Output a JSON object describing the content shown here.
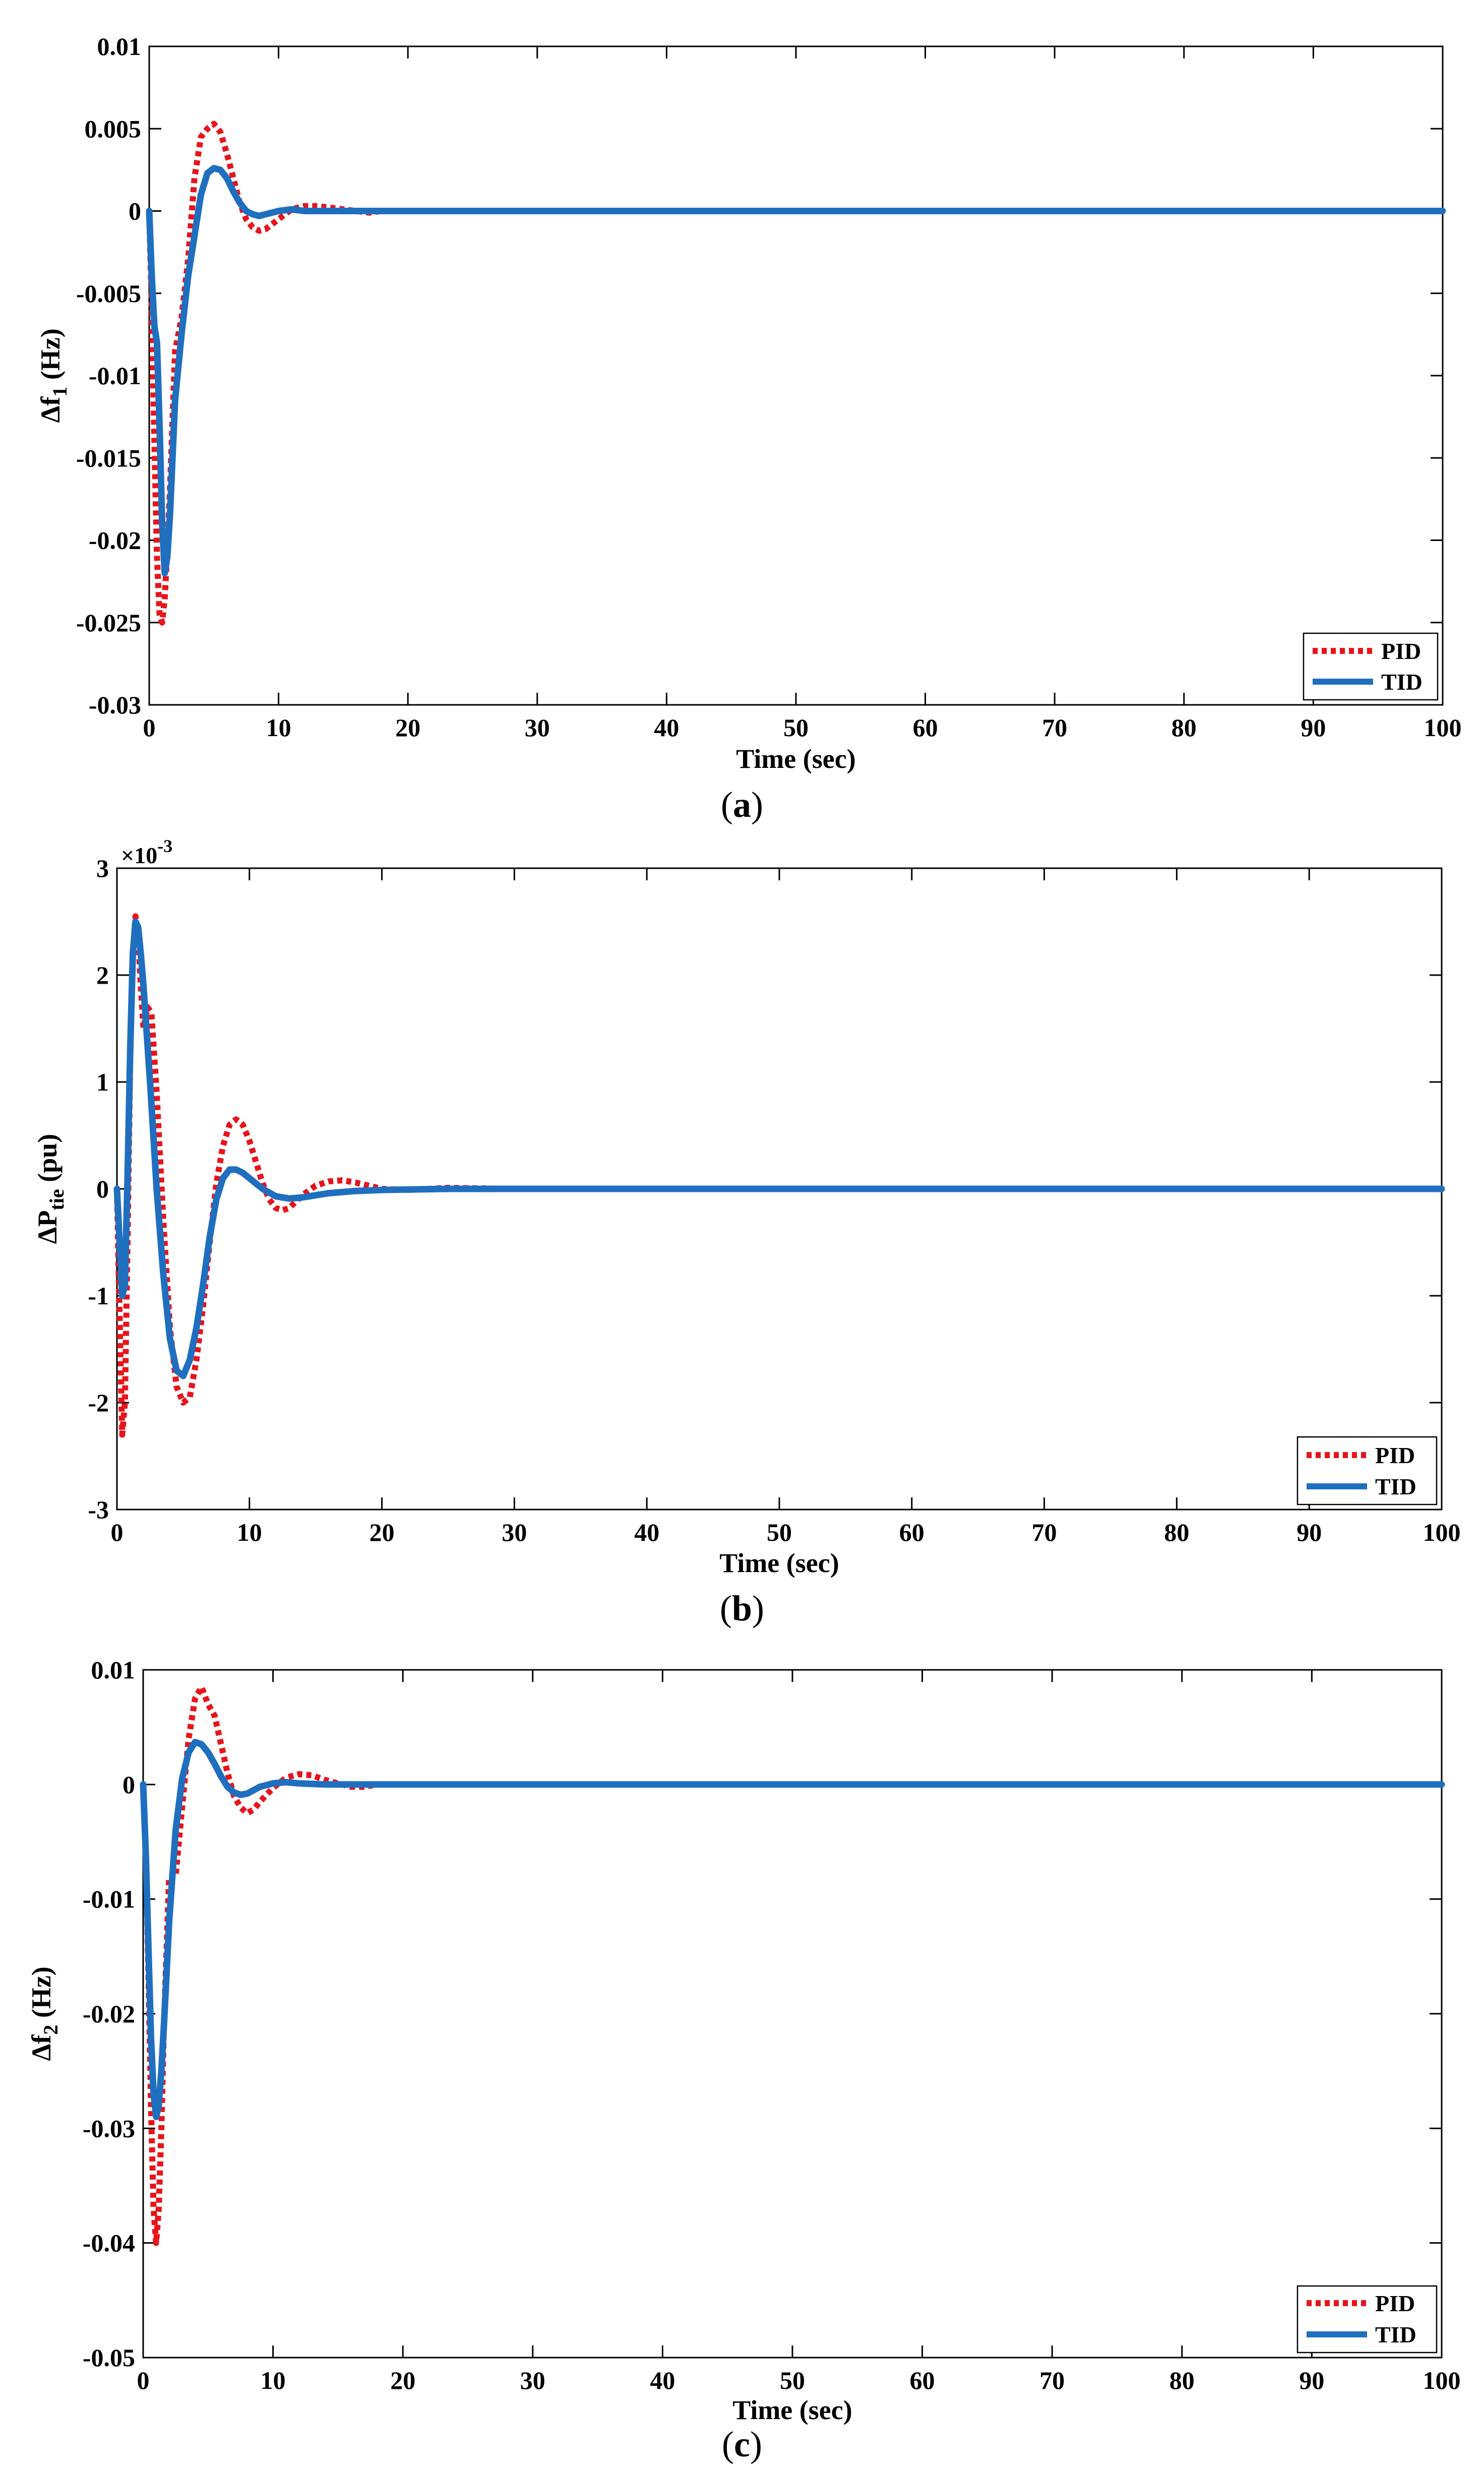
{
  "colors": {
    "pid": "#e8141b",
    "tid": "#1f6fbf",
    "axis": "#000000",
    "background": "#ffffff"
  },
  "chart_data": [
    {
      "id": "a",
      "type": "line",
      "caption_letter": "a",
      "xlabel": "Time (sec)",
      "ylabel": {
        "prefix": "Δf",
        "sub": "1",
        "suffix": " (Hz)"
      },
      "xlim": [
        0,
        100
      ],
      "ylim": [
        -0.03,
        0.01
      ],
      "xticks": [
        0,
        10,
        20,
        30,
        40,
        50,
        60,
        70,
        80,
        90,
        100
      ],
      "xtick_labels": [
        "0",
        "10",
        "20",
        "30",
        "40",
        "50",
        "60",
        "70",
        "80",
        "90",
        "100"
      ],
      "yticks": [
        -0.03,
        -0.025,
        -0.02,
        -0.015,
        -0.01,
        -0.005,
        0,
        0.005,
        0.01
      ],
      "ytick_labels": [
        "-0.03",
        "-0.025",
        "-0.02",
        "-0.015",
        "-0.01",
        "-0.005",
        "0",
        "0.005",
        "0.01"
      ],
      "exponent_label": "",
      "legend_position": "bottom-right",
      "series": [
        {
          "name": "PID",
          "style": "dotted",
          "x": [
            0,
            0.2,
            0.4,
            0.6,
            0.8,
            1.0,
            1.2,
            1.4,
            1.6,
            2.0,
            2.5,
            3.0,
            3.5,
            4.0,
            4.5,
            5.0,
            5.5,
            6.0,
            6.5,
            7.0,
            7.5,
            8.0,
            8.5,
            9.0,
            10.0,
            11.0,
            12.0,
            13.0,
            14.0,
            15.0,
            16.0,
            17.0,
            18.0,
            20.0,
            25.0,
            30.0,
            40.0,
            60.0,
            80.0,
            100.0
          ],
          "y": [
            0,
            -0.006,
            -0.014,
            -0.021,
            -0.0245,
            -0.025,
            -0.0235,
            -0.0205,
            -0.017,
            -0.0085,
            -0.0065,
            -0.003,
            0.002,
            0.0045,
            0.005,
            0.0053,
            0.0048,
            0.0035,
            0.002,
            0.0005,
            -0.0005,
            -0.001,
            -0.0012,
            -0.0011,
            -0.0005,
            0.0001,
            0.0003,
            0.0003,
            0.0002,
            0.0001,
            0,
            -0.0001,
            0,
            0,
            0,
            0,
            0,
            0,
            0,
            0
          ]
        },
        {
          "name": "TID",
          "style": "solid",
          "x": [
            0,
            0.2,
            0.4,
            0.6,
            0.8,
            1.0,
            1.2,
            1.4,
            1.6,
            1.8,
            2.0,
            2.5,
            3.0,
            3.5,
            4.0,
            4.5,
            5.0,
            5.5,
            6.0,
            6.5,
            7.0,
            7.5,
            8.0,
            8.5,
            9.0,
            10.0,
            11.0,
            12.0,
            14.0,
            16.0,
            20.0,
            30.0,
            50.0,
            100.0
          ],
          "y": [
            0,
            -0.004,
            -0.007,
            -0.008,
            -0.013,
            -0.019,
            -0.022,
            -0.021,
            -0.0185,
            -0.015,
            -0.0115,
            -0.0075,
            -0.004,
            -0.0015,
            0.001,
            0.0023,
            0.0026,
            0.0025,
            0.002,
            0.0012,
            0.0005,
            0.0,
            -0.0002,
            -0.0003,
            -0.0002,
            0,
            0.0001,
            0,
            0,
            0,
            0,
            0,
            0,
            0
          ]
        }
      ]
    },
    {
      "id": "b",
      "type": "line",
      "caption_letter": "b",
      "xlabel": "Time (sec)",
      "ylabel": {
        "prefix": "ΔP",
        "sub": "tie",
        "suffix": " (pu)"
      },
      "xlim": [
        0,
        100
      ],
      "ylim": [
        -3,
        3
      ],
      "xticks": [
        0,
        10,
        20,
        30,
        40,
        50,
        60,
        70,
        80,
        90,
        100
      ],
      "xtick_labels": [
        "0",
        "10",
        "20",
        "30",
        "40",
        "50",
        "60",
        "70",
        "80",
        "90",
        "100"
      ],
      "yticks": [
        -3,
        -2,
        -1,
        0,
        1,
        2,
        3
      ],
      "ytick_labels": [
        "-3",
        "-2",
        "-1",
        "0",
        "1",
        "2",
        "3"
      ],
      "exponent_label": "×10",
      "exponent_power": "-3",
      "legend_position": "bottom-right",
      "series": [
        {
          "name": "PID",
          "style": "dotted",
          "x": [
            0,
            0.2,
            0.4,
            0.6,
            0.8,
            1.0,
            1.2,
            1.4,
            1.6,
            1.8,
            2.0,
            2.3,
            2.6,
            3.0,
            3.5,
            4.0,
            4.5,
            5.0,
            5.5,
            6.0,
            6.5,
            7.0,
            7.5,
            8.0,
            8.5,
            9.0,
            9.5,
            10.0,
            10.5,
            11.0,
            11.5,
            12.0,
            12.5,
            13.0,
            13.5,
            14.0,
            15.0,
            16.0,
            17.0,
            18.0,
            19.0,
            20.0,
            22.0,
            25.0,
            30.0,
            40.0,
            60.0,
            80.0,
            100.0
          ],
          "y": [
            0,
            -1.2,
            -2.3,
            -2.0,
            -0.5,
            1.2,
            2.2,
            2.55,
            2.4,
            1.9,
            1.5,
            1.7,
            1.65,
            0.9,
            -0.3,
            -1.3,
            -1.85,
            -2.0,
            -1.95,
            -1.6,
            -1.1,
            -0.5,
            0.05,
            0.4,
            0.6,
            0.65,
            0.6,
            0.45,
            0.25,
            0.05,
            -0.1,
            -0.18,
            -0.2,
            -0.18,
            -0.12,
            -0.06,
            0.03,
            0.07,
            0.08,
            0.06,
            0.03,
            0.0,
            -0.01,
            0.01,
            0,
            0,
            0,
            0,
            0
          ]
        },
        {
          "name": "TID",
          "style": "solid",
          "x": [
            0,
            0.2,
            0.4,
            0.6,
            0.8,
            1.0,
            1.2,
            1.4,
            1.6,
            1.8,
            2.0,
            2.5,
            3.0,
            3.5,
            4.0,
            4.5,
            5.0,
            5.5,
            6.0,
            6.5,
            7.0,
            7.5,
            8.0,
            8.5,
            9.0,
            9.5,
            10.0,
            11.0,
            12.0,
            13.0,
            14.0,
            15.0,
            16.0,
            17.0,
            18.0,
            20.0,
            25.0,
            30.0,
            40.0,
            60.0,
            80.0,
            100.0
          ],
          "y": [
            0,
            -0.5,
            -1.0,
            -0.9,
            0.1,
            1.3,
            2.2,
            2.5,
            2.45,
            2.2,
            1.9,
            1.0,
            0.0,
            -0.8,
            -1.4,
            -1.7,
            -1.75,
            -1.6,
            -1.3,
            -0.9,
            -0.45,
            -0.1,
            0.1,
            0.18,
            0.18,
            0.15,
            0.1,
            0.0,
            -0.07,
            -0.09,
            -0.08,
            -0.06,
            -0.04,
            -0.03,
            -0.02,
            -0.01,
            0,
            0,
            0,
            0,
            0,
            0
          ]
        }
      ]
    },
    {
      "id": "c",
      "type": "line",
      "caption_letter": "c",
      "xlabel": "Time (sec)",
      "ylabel": {
        "prefix": "Δf",
        "sub": "2",
        "suffix": " (Hz)"
      },
      "xlim": [
        0,
        100
      ],
      "ylim": [
        -0.05,
        0.01
      ],
      "xticks": [
        0,
        10,
        20,
        30,
        40,
        50,
        60,
        70,
        80,
        90,
        100
      ],
      "xtick_labels": [
        "0",
        "10",
        "20",
        "30",
        "40",
        "50",
        "60",
        "70",
        "80",
        "90",
        "100"
      ],
      "yticks": [
        -0.05,
        -0.04,
        -0.03,
        -0.02,
        -0.01,
        0,
        0.01
      ],
      "ytick_labels": [
        "-0.05",
        "-0.04",
        "-0.03",
        "-0.02",
        "-0.01",
        "0",
        "0.01"
      ],
      "exponent_label": "",
      "legend_position": "bottom-right",
      "series": [
        {
          "name": "PID",
          "style": "dotted",
          "x": [
            0,
            0.2,
            0.4,
            0.6,
            0.8,
            1.0,
            1.2,
            1.4,
            1.6,
            2.0,
            2.5,
            3.0,
            3.5,
            4.0,
            4.5,
            5.0,
            5.5,
            6.0,
            6.5,
            7.0,
            7.5,
            8.0,
            8.5,
            9.0,
            10.0,
            11.0,
            12.0,
            13.0,
            14.0,
            15.0,
            16.0,
            17.0,
            18.0,
            20.0,
            25.0,
            30.0,
            40.0,
            60.0,
            80.0,
            100.0
          ],
          "y": [
            0,
            -0.006,
            -0.016,
            -0.028,
            -0.037,
            -0.04,
            -0.037,
            -0.03,
            -0.021,
            -0.008,
            -0.008,
            -0.002,
            0.004,
            0.0075,
            0.0085,
            0.007,
            0.006,
            0.0035,
            0.001,
            -0.001,
            -0.002,
            -0.0025,
            -0.0022,
            -0.0015,
            -0.0003,
            0.0006,
            0.0009,
            0.0008,
            0.0004,
            0.0001,
            -0.0002,
            -0.0002,
            0,
            0,
            0,
            0,
            0,
            0,
            0,
            0
          ]
        },
        {
          "name": "TID",
          "style": "solid",
          "x": [
            0,
            0.2,
            0.4,
            0.6,
            0.8,
            1.0,
            1.2,
            1.4,
            1.6,
            1.8,
            2.0,
            2.5,
            3.0,
            3.5,
            4.0,
            4.5,
            5.0,
            5.5,
            6.0,
            6.5,
            7.0,
            7.5,
            8.0,
            8.5,
            9.0,
            10.0,
            11.0,
            12.0,
            14.0,
            16.0,
            20.0,
            30.0,
            50.0,
            100.0
          ],
          "y": [
            0,
            -0.006,
            -0.014,
            -0.022,
            -0.027,
            -0.029,
            -0.028,
            -0.025,
            -0.021,
            -0.0165,
            -0.012,
            -0.004,
            0.0005,
            0.0028,
            0.0037,
            0.0035,
            0.0028,
            0.0018,
            0.0007,
            -0.0002,
            -0.0007,
            -0.0009,
            -0.0008,
            -0.0005,
            -0.0002,
            0.0001,
            0.0002,
            0.0001,
            0,
            0,
            0,
            0,
            0,
            0
          ]
        }
      ]
    }
  ]
}
